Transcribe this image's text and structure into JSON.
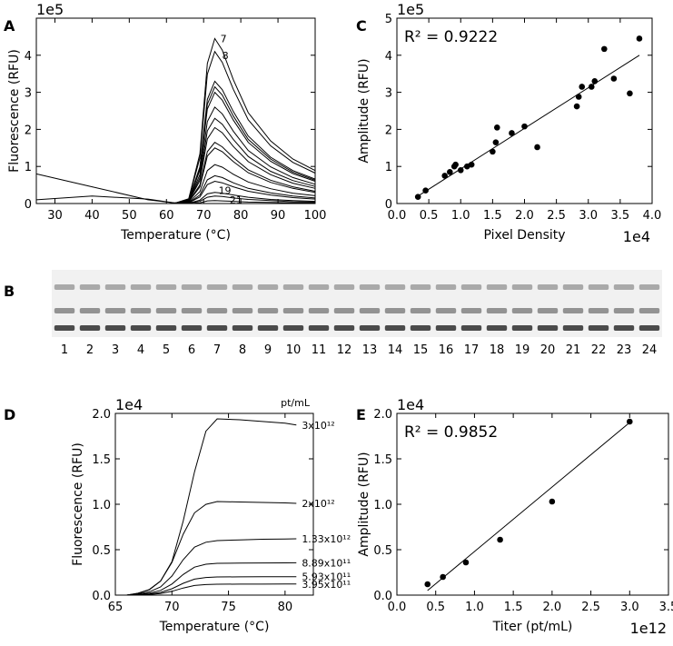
{
  "chart_data": [
    {
      "type": "line",
      "panel": "A",
      "xlabel": "Temperature (°C)",
      "ylabel": "Fluorescence (RFU)",
      "y_offset_text": "1e5",
      "xlim": [
        25,
        100
      ],
      "ylim": [
        0,
        500000
      ],
      "xticks": [
        30,
        40,
        50,
        60,
        70,
        80,
        90,
        100
      ],
      "yticks": [
        0,
        {
          "value": 100000,
          "label": "1"
        },
        {
          "value": 200000,
          "label": "2"
        },
        {
          "value": 300000,
          "label": "3"
        },
        {
          "value": 400000,
          "label": "4"
        }
      ],
      "color": "#000000",
      "x": [
        25,
        40,
        55,
        62,
        66,
        69,
        71,
        73,
        75,
        78,
        82,
        88,
        94,
        100
      ],
      "series": [
        {
          "values": [
            0,
            0,
            0,
            0,
            13000,
            134000,
            378000,
            445000,
            414000,
            334000,
            245000,
            169000,
            120000,
            89000
          ]
        },
        {
          "values": [
            0,
            0,
            0,
            0,
            12000,
            123000,
            349000,
            410000,
            381000,
            308000,
            226000,
            156000,
            111000,
            82000
          ]
        },
        {
          "values": [
            0,
            0,
            0,
            0,
            10000,
            99000,
            281000,
            330000,
            307000,
            248000,
            182000,
            125000,
            89000,
            66000
          ]
        },
        {
          "values": [
            0,
            0,
            0,
            0,
            9000,
            95000,
            268000,
            315000,
            293000,
            236000,
            173000,
            120000,
            85000,
            63000
          ]
        },
        {
          "values": [
            0,
            0,
            0,
            0,
            9000,
            90000,
            255000,
            300000,
            279000,
            225000,
            165000,
            114000,
            81000,
            60000
          ]
        },
        {
          "values": [
            0,
            0,
            0,
            0,
            8000,
            78000,
            221000,
            260000,
            242000,
            195000,
            143000,
            99000,
            70000,
            52000
          ]
        },
        {
          "values": [
            0,
            0,
            0,
            0,
            7000,
            69000,
            196000,
            230000,
            214000,
            173000,
            127000,
            87000,
            62000,
            46000
          ]
        },
        {
          "values": [
            0,
            0,
            0,
            0,
            6000,
            62000,
            174000,
            205000,
            191000,
            154000,
            113000,
            78000,
            55000,
            41000
          ]
        },
        {
          "values": [
            0,
            0,
            0,
            0,
            5000,
            50000,
            140000,
            165000,
            153000,
            124000,
            91000,
            63000,
            45000,
            33000
          ]
        },
        {
          "values": [
            0,
            0,
            0,
            0,
            5000,
            45000,
            128000,
            150000,
            140000,
            113000,
            83000,
            57000,
            41000,
            30000
          ]
        },
        {
          "values": [
            0,
            0,
            0,
            0,
            3000,
            32000,
            89000,
            105000,
            98000,
            79000,
            58000,
            40000,
            28000,
            21000
          ]
        },
        {
          "values": [
            0,
            0,
            0,
            0,
            2000,
            23000,
            64000,
            75000,
            70000,
            56000,
            41000,
            29000,
            20000,
            15000
          ]
        },
        {
          "values": [
            80000,
            45000,
            10000,
            2000,
            2000,
            18000,
            51000,
            60000,
            56000,
            45000,
            33000,
            23000,
            16000,
            12000
          ]
        },
        {
          "values": [
            10000,
            20000,
            12000,
            2000,
            1000,
            9000,
            26000,
            30000,
            28000,
            23000,
            17000,
            11000,
            8000,
            6000
          ]
        },
        {
          "values": [
            0,
            0,
            0,
            0,
            1000,
            6000,
            17000,
            20000,
            19000,
            15000,
            11000,
            8000,
            5000,
            4000
          ]
        },
        {
          "values": [
            0,
            0,
            0,
            0,
            0,
            2000,
            7000,
            8000,
            7000,
            6000,
            4000,
            3000,
            2000,
            2000
          ]
        }
      ],
      "annotations": [
        {
          "text": "7",
          "x": 74.5,
          "y": 445000
        },
        {
          "text": "8",
          "x": 75,
          "y": 400000
        },
        {
          "text": "19",
          "x": 74,
          "y": 35000
        },
        {
          "text": "21",
          "x": 77,
          "y": 10000
        }
      ]
    },
    {
      "type": "scatter",
      "panel": "C",
      "xlabel": "Pixel Density",
      "ylabel": "Amplitude (RFU)",
      "y_offset_text": "1e5",
      "x_offset_text": "1e4",
      "annotation": "R² = 0.9222",
      "xlim": [
        0,
        40000
      ],
      "ylim": [
        0,
        500000
      ],
      "xticks": [
        {
          "value": 0,
          "label": "0.0"
        },
        {
          "value": 5000,
          "label": "0.5"
        },
        {
          "value": 10000,
          "label": "1.0"
        },
        {
          "value": 15000,
          "label": "1.5"
        },
        {
          "value": 20000,
          "label": "2.0"
        },
        {
          "value": 25000,
          "label": "2.5"
        },
        {
          "value": 30000,
          "label": "3.0"
        },
        {
          "value": 35000,
          "label": "3.5"
        },
        {
          "value": 40000,
          "label": "4.0"
        }
      ],
      "yticks": [
        0,
        {
          "value": 100000,
          "label": "1"
        },
        {
          "value": 200000,
          "label": "2"
        },
        {
          "value": 300000,
          "label": "3"
        },
        {
          "value": 400000,
          "label": "4"
        },
        {
          "value": 500000,
          "label": "5"
        }
      ],
      "color": "#000000",
      "x": [
        3300,
        4500,
        7500,
        8300,
        9000,
        9200,
        10000,
        11000,
        11700,
        15000,
        15500,
        15700,
        18000,
        20000,
        22000,
        28200,
        28500,
        29000,
        30500,
        31000,
        32500,
        34000,
        36500,
        38000
      ],
      "values": [
        18000,
        35000,
        75000,
        85000,
        100000,
        105000,
        90000,
        100000,
        105000,
        140000,
        165000,
        205000,
        190000,
        208000,
        152000,
        262000,
        288000,
        315000,
        315000,
        330000,
        417000,
        337000,
        297000,
        445000
      ],
      "fit": {
        "x": [
          3300,
          38000
        ],
        "y": [
          20000,
          400000
        ]
      }
    },
    {
      "type": "line",
      "panel": "D",
      "xlabel": "Temperature (°C)",
      "ylabel": "Fluorescence (RFU)",
      "y_offset_text": "1e4",
      "legend_title": "pt/mL",
      "xlim": [
        65,
        82.5
      ],
      "ylim": [
        0,
        20000
      ],
      "xticks": [
        65,
        70,
        75,
        80
      ],
      "yticks": [
        {
          "value": 0,
          "label": "0.0"
        },
        {
          "value": 5000,
          "label": "0.5"
        },
        {
          "value": 10000,
          "label": "1.0"
        },
        {
          "value": 15000,
          "label": "1.5"
        },
        {
          "value": 20000,
          "label": "2.0"
        }
      ],
      "color": "#000000",
      "x": [
        66,
        67,
        68,
        69,
        70,
        71,
        72,
        73,
        74,
        76,
        78,
        80,
        81
      ],
      "series": [
        {
          "name": "3x10¹²",
          "values": [
            0,
            190,
            580,
            1550,
            3690,
            8150,
            13580,
            18040,
            19400,
            19300,
            19110,
            18920,
            18720
          ]
        },
        {
          "name": "2x10¹²",
          "values": [
            0,
            206,
            618,
            1545,
            3605,
            6695,
            9064,
            9991,
            10300,
            10250,
            10200,
            10150,
            10100
          ]
        },
        {
          "name": "1.33x10¹²",
          "values": [
            0,
            120,
            360,
            900,
            2100,
            3900,
            5280,
            5820,
            6000,
            6080,
            6150,
            6180,
            6200
          ]
        },
        {
          "name": "8.89x10¹¹",
          "values": [
            0,
            70,
            210,
            525,
            1225,
            2275,
            3080,
            3395,
            3500,
            3520,
            3540,
            3550,
            3560
          ]
        },
        {
          "name": "5.93x10¹¹",
          "values": [
            0,
            40,
            120,
            300,
            700,
            1300,
            1760,
            1940,
            2000,
            2010,
            2020,
            2030,
            2030
          ]
        },
        {
          "name": "3.95x10¹¹",
          "values": [
            0,
            24,
            72,
            180,
            420,
            780,
            1056,
            1164,
            1200,
            1210,
            1210,
            1220,
            1220
          ]
        }
      ]
    },
    {
      "type": "scatter",
      "panel": "E",
      "xlabel": "Titer (pt/mL)",
      "ylabel": "Amplitude (RFU)",
      "y_offset_text": "1e4",
      "x_offset_text": "1e12",
      "annotation": "R² = 0.9852",
      "xlim": [
        0,
        3500000000000
      ],
      "ylim": [
        0,
        20000
      ],
      "xticks": [
        {
          "value": 0,
          "label": "0.0"
        },
        {
          "value": 500000000000,
          "label": "0.5"
        },
        {
          "value": 1000000000000,
          "label": "1.0"
        },
        {
          "value": 1500000000000,
          "label": "1.5"
        },
        {
          "value": 2000000000000,
          "label": "2.0"
        },
        {
          "value": 2500000000000,
          "label": "2.5"
        },
        {
          "value": 3000000000000,
          "label": "3.0"
        },
        {
          "value": 3500000000000,
          "label": "3.5"
        }
      ],
      "yticks": [
        {
          "value": 0,
          "label": "0.0"
        },
        {
          "value": 5000,
          "label": "0.5"
        },
        {
          "value": 10000,
          "label": "1.0"
        },
        {
          "value": 15000,
          "label": "1.5"
        },
        {
          "value": 20000,
          "label": "2.0"
        }
      ],
      "color": "#000000",
      "x": [
        395000000000,
        593000000000,
        889000000000,
        1330000000000,
        2000000000000,
        3000000000000
      ],
      "values": [
        1200,
        2000,
        3600,
        6100,
        10300,
        19100
      ],
      "fit": {
        "x": [
          395000000000,
          3000000000000
        ],
        "y": [
          500,
          19000
        ]
      }
    }
  ],
  "gel": {
    "panel": "B",
    "lanes": [
      "1",
      "2",
      "3",
      "4",
      "5",
      "6",
      "7",
      "8",
      "9",
      "10",
      "11",
      "12",
      "13",
      "14",
      "15",
      "16",
      "17",
      "18",
      "19",
      "20",
      "21",
      "22",
      "23",
      "24"
    ]
  }
}
